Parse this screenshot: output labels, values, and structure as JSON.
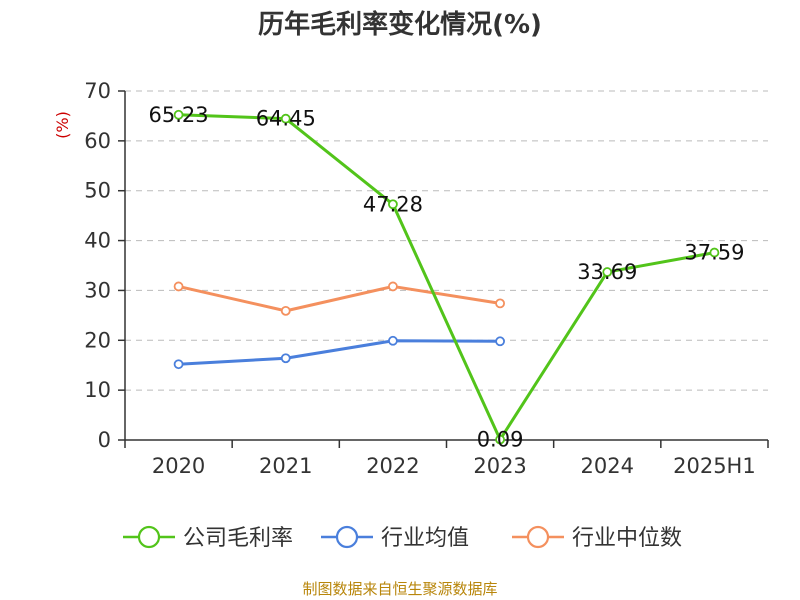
{
  "chart_data": {
    "type": "line",
    "title": "历年毛利率变化情况(%)",
    "ylabel": "(%)",
    "ylim": [
      0,
      70
    ],
    "yticks": [
      0,
      10,
      20,
      30,
      40,
      50,
      60,
      70
    ],
    "categories": [
      "2020",
      "2021",
      "2022",
      "2023",
      "2024",
      "2025H1"
    ],
    "grid": true,
    "legend": "bottom",
    "series": [
      {
        "name": "公司毛利率",
        "color": "#52c41a",
        "values": [
          65.23,
          64.45,
          47.28,
          0.09,
          33.69,
          37.59
        ],
        "labels": [
          "65.23",
          "64.45",
          "47.28",
          "0.09",
          "33.69",
          "37.59"
        ]
      },
      {
        "name": "行业均值",
        "color": "#4a7fdc",
        "values": [
          15.2,
          16.4,
          19.9,
          19.8,
          null,
          null
        ]
      },
      {
        "name": "行业中位数",
        "color": "#f4905e",
        "values": [
          30.8,
          25.9,
          30.8,
          27.4,
          null,
          null
        ]
      }
    ],
    "source": "制图数据来自恒生聚源数据库"
  }
}
